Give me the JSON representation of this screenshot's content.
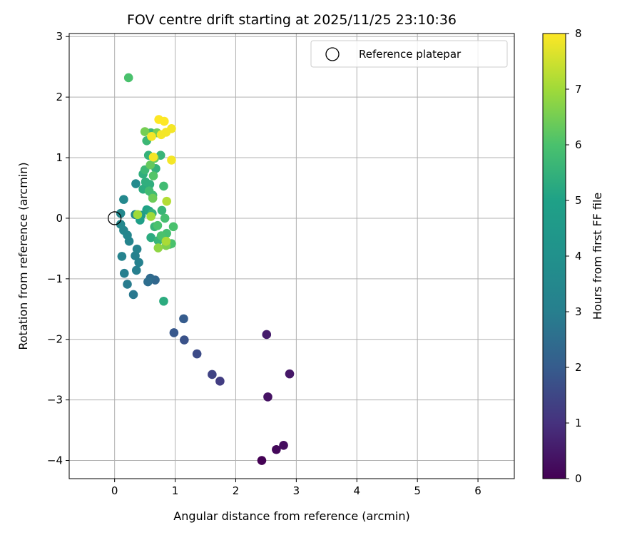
{
  "chart_data": {
    "type": "scatter",
    "title": "FOV centre drift starting at 2025/11/25 23:10:36",
    "xlabel": "Angular distance from reference (arcmin)",
    "ylabel": "Rotation from reference (arcmin)",
    "xlim": [
      -0.75,
      6.6
    ],
    "ylim": [
      -4.3,
      3.05
    ],
    "xticks": [
      0,
      1,
      2,
      3,
      4,
      5,
      6
    ],
    "yticks": [
      -4,
      -3,
      -2,
      -1,
      0,
      1,
      2,
      3
    ],
    "grid": true,
    "legend": {
      "label": "Reference platepar",
      "position": "top-right"
    },
    "reference_point": {
      "x": 0,
      "y": 0
    },
    "colorbar": {
      "label": "Hours from first FF file",
      "range": [
        0,
        8
      ],
      "ticks": [
        0,
        1,
        2,
        3,
        4,
        5,
        6,
        7,
        8
      ],
      "colormap": "viridis"
    },
    "points": [
      {
        "x": 2.43,
        "y": -4.0,
        "c": 0.0
      },
      {
        "x": 2.67,
        "y": -3.82,
        "c": 0.15
      },
      {
        "x": 2.79,
        "y": -3.75,
        "c": 0.25
      },
      {
        "x": 2.53,
        "y": -2.95,
        "c": 0.35
      },
      {
        "x": 2.89,
        "y": -2.57,
        "c": 0.45
      },
      {
        "x": 2.51,
        "y": -1.92,
        "c": 0.55
      },
      {
        "x": 1.74,
        "y": -2.69,
        "c": 1.25
      },
      {
        "x": 1.61,
        "y": -2.58,
        "c": 1.4
      },
      {
        "x": 1.36,
        "y": -2.24,
        "c": 1.6
      },
      {
        "x": 1.15,
        "y": -2.01,
        "c": 1.75
      },
      {
        "x": 0.98,
        "y": -1.89,
        "c": 1.9
      },
      {
        "x": 1.14,
        "y": -1.66,
        "c": 2.0
      },
      {
        "x": 0.67,
        "y": -1.02,
        "c": 2.3
      },
      {
        "x": 0.59,
        "y": -0.99,
        "c": 2.4
      },
      {
        "x": 0.55,
        "y": -1.05,
        "c": 2.5
      },
      {
        "x": 0.31,
        "y": -1.26,
        "c": 2.8
      },
      {
        "x": 0.21,
        "y": -1.09,
        "c": 2.9
      },
      {
        "x": 0.16,
        "y": -0.91,
        "c": 3.0
      },
      {
        "x": 0.36,
        "y": -0.86,
        "c": 3.0
      },
      {
        "x": 0.4,
        "y": -0.73,
        "c": 3.1
      },
      {
        "x": 0.34,
        "y": -0.62,
        "c": 3.1
      },
      {
        "x": 0.12,
        "y": -0.63,
        "c": 3.2
      },
      {
        "x": 0.37,
        "y": -0.51,
        "c": 3.2
      },
      {
        "x": 0.24,
        "y": -0.38,
        "c": 3.3
      },
      {
        "x": 0.21,
        "y": -0.28,
        "c": 3.4
      },
      {
        "x": 0.15,
        "y": -0.2,
        "c": 3.4
      },
      {
        "x": 0.1,
        "y": -0.1,
        "c": 3.5
      },
      {
        "x": 0.1,
        "y": 0.08,
        "c": 3.5
      },
      {
        "x": 0.15,
        "y": 0.31,
        "c": 3.5
      },
      {
        "x": 0.35,
        "y": 0.57,
        "c": 3.6
      },
      {
        "x": 0.34,
        "y": 0.06,
        "c": 3.6
      },
      {
        "x": 0.44,
        "y": 0.05,
        "c": 4.5
      },
      {
        "x": 0.42,
        "y": -0.03,
        "c": 4.9
      },
      {
        "x": 0.53,
        "y": 0.14,
        "c": 5.0
      },
      {
        "x": 0.57,
        "y": 0.12,
        "c": 5.1
      },
      {
        "x": 0.6,
        "y": -0.32,
        "c": 5.3
      },
      {
        "x": 0.81,
        "y": -1.37,
        "c": 5.3
      },
      {
        "x": 0.47,
        "y": 0.48,
        "c": 5.3
      },
      {
        "x": 0.51,
        "y": 0.6,
        "c": 5.4
      },
      {
        "x": 0.47,
        "y": 0.73,
        "c": 5.4
      },
      {
        "x": 0.58,
        "y": 0.56,
        "c": 5.4
      },
      {
        "x": 0.56,
        "y": 1.04,
        "c": 5.5
      },
      {
        "x": 0.68,
        "y": 0.82,
        "c": 5.5
      },
      {
        "x": 0.62,
        "y": 0.08,
        "c": 5.5
      },
      {
        "x": 0.66,
        "y": -0.14,
        "c": 5.6
      },
      {
        "x": 0.72,
        "y": -0.37,
        "c": 5.6
      },
      {
        "x": 0.78,
        "y": 0.13,
        "c": 5.6
      },
      {
        "x": 0.76,
        "y": 1.04,
        "c": 5.6
      },
      {
        "x": 0.53,
        "y": 1.28,
        "c": 5.7
      },
      {
        "x": 0.6,
        "y": 1.41,
        "c": 5.7
      },
      {
        "x": 0.5,
        "y": 0.8,
        "c": 5.7
      },
      {
        "x": 0.57,
        "y": 0.45,
        "c": 5.8
      },
      {
        "x": 0.63,
        "y": 0.38,
        "c": 5.8
      },
      {
        "x": 0.81,
        "y": 0.53,
        "c": 5.8
      },
      {
        "x": 0.83,
        "y": 0.0,
        "c": 5.9
      },
      {
        "x": 0.86,
        "y": -0.25,
        "c": 5.9
      },
      {
        "x": 0.91,
        "y": -0.43,
        "c": 5.9
      },
      {
        "x": 0.94,
        "y": -0.42,
        "c": 6.0
      },
      {
        "x": 0.97,
        "y": -0.14,
        "c": 6.0
      },
      {
        "x": 0.71,
        "y": -0.12,
        "c": 6.0
      },
      {
        "x": 0.77,
        "y": -0.29,
        "c": 6.0
      },
      {
        "x": 0.64,
        "y": 0.7,
        "c": 6.1
      },
      {
        "x": 0.23,
        "y": 2.32,
        "c": 6.0
      },
      {
        "x": 0.59,
        "y": 0.88,
        "c": 6.3
      },
      {
        "x": 0.66,
        "y": 0.99,
        "c": 6.3
      },
      {
        "x": 0.63,
        "y": 0.33,
        "c": 6.4
      },
      {
        "x": 0.5,
        "y": 1.43,
        "c": 6.5
      },
      {
        "x": 0.7,
        "y": 1.41,
        "c": 6.5
      },
      {
        "x": 0.85,
        "y": -0.45,
        "c": 6.6
      },
      {
        "x": 0.72,
        "y": -0.49,
        "c": 6.8
      },
      {
        "x": 0.38,
        "y": 0.06,
        "c": 7.0
      },
      {
        "x": 0.6,
        "y": 0.03,
        "c": 7.0
      },
      {
        "x": 0.85,
        "y": -0.38,
        "c": 7.1
      },
      {
        "x": 0.86,
        "y": 0.28,
        "c": 7.2
      },
      {
        "x": 0.64,
        "y": 1.01,
        "c": 7.9
      },
      {
        "x": 0.61,
        "y": 1.35,
        "c": 7.9
      },
      {
        "x": 0.77,
        "y": 1.38,
        "c": 7.9
      },
      {
        "x": 0.85,
        "y": 1.42,
        "c": 7.9
      },
      {
        "x": 0.94,
        "y": 1.48,
        "c": 7.9
      },
      {
        "x": 0.94,
        "y": 0.96,
        "c": 7.9
      },
      {
        "x": 0.73,
        "y": 1.63,
        "c": 8.0
      },
      {
        "x": 0.82,
        "y": 1.6,
        "c": 8.0
      }
    ]
  }
}
